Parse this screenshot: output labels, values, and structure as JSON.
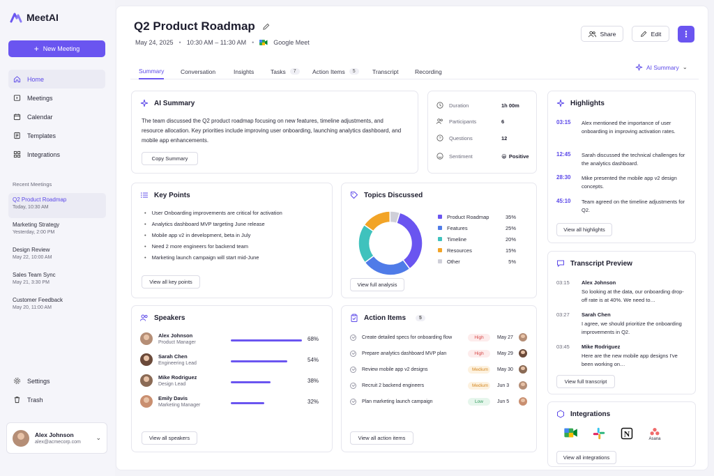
{
  "app": {
    "name": "MeetAI",
    "new_meeting": "New Meeting"
  },
  "nav": [
    {
      "label": "Home",
      "icon": "home-icon"
    },
    {
      "label": "Meetings",
      "icon": "meetings-icon"
    },
    {
      "label": "Calendar",
      "icon": "calendar-icon"
    },
    {
      "label": "Templates",
      "icon": "templates-icon"
    },
    {
      "label": "Integrations",
      "icon": "integrations-icon"
    }
  ],
  "recent": {
    "title": "Recent Meetings",
    "items": [
      {
        "name": "Q2 Product Roadmap",
        "date": "Today, 10:30 AM"
      },
      {
        "name": "Marketing Strategy",
        "date": "Yesterday, 2:00 PM"
      },
      {
        "name": "Design Review",
        "date": "May 22, 10:00 AM"
      },
      {
        "name": "Sales Team Sync",
        "date": "May 21, 3:30 PM"
      },
      {
        "name": "Customer Feedback",
        "date": "May 20, 11:00 AM"
      }
    ]
  },
  "bottom_nav": [
    {
      "label": "Settings"
    },
    {
      "label": "Trash"
    }
  ],
  "user": {
    "name": "Alex Johnson",
    "email": "alex@acmecorp.com"
  },
  "meeting": {
    "title": "Q2 Product Roadmap",
    "date": "May 24, 2025",
    "time": "10:30 AM – 11:30 AM",
    "platform": "Google Meet"
  },
  "header": {
    "share": "Share",
    "edit": "Edit"
  },
  "tabs": [
    {
      "label": "Summary"
    },
    {
      "label": "Conversation"
    },
    {
      "label": "Insights"
    },
    {
      "label": "Tasks",
      "count": "7"
    },
    {
      "label": "Action Items",
      "count": "5"
    },
    {
      "label": "Transcript"
    },
    {
      "label": "Recording"
    }
  ],
  "ai_dropdown": "AI Summary",
  "summary": {
    "title": "AI Summary",
    "text": "The team discussed the Q2 product roadmap focusing on new features, timeline adjustments, and resource allocation. Key priorities include improving user onboarding, launching analytics dashboard, and mobile app enhancements.",
    "copy": "Copy Summary"
  },
  "stats": [
    {
      "label": "Duration",
      "value": "1h 00m"
    },
    {
      "label": "Participants",
      "value": "6"
    },
    {
      "label": "Questions",
      "value": "12"
    },
    {
      "label": "Sentiment",
      "value": "Positive",
      "emoji": "😀"
    }
  ],
  "highlights": {
    "title": "Highlights",
    "items": [
      {
        "time": "03:15",
        "text": "Alex mentioned the importance of user onboarding in improving activation rates."
      },
      {
        "time": "12:45",
        "text": "Sarah discussed the technical challenges for the analytics dashboard."
      },
      {
        "time": "28:30",
        "text": "Mike presented the mobile app v2 design concepts."
      },
      {
        "time": "45:10",
        "text": "Team agreed on the timeline adjustments for Q2."
      }
    ],
    "view_all": "View all highlights"
  },
  "key_points": {
    "title": "Key Points",
    "items": [
      "User Onboarding improvements are critical for activation",
      "Analytics dashboard MVP targeting June release",
      "Mobile app v2 in development, beta in July",
      "Need 2 more engineers for backend team",
      "Marketing launch campaign will start mid-June"
    ],
    "view_all": "View all key points"
  },
  "topics": {
    "title": "Topics Discussed",
    "view_all": "View full analysis"
  },
  "chart_data": {
    "type": "pie",
    "title": "Topics Discussed",
    "categories": [
      "Product Roadmap",
      "Features",
      "Timeline",
      "Resources",
      "Other"
    ],
    "values": [
      35,
      25,
      20,
      15,
      5
    ],
    "labels": [
      "35%",
      "25%",
      "20%",
      "15%",
      "5%"
    ],
    "colors": [
      "#6a55f0",
      "#4f7be8",
      "#3fc2bd",
      "#f2a427",
      "#cfcfd8"
    ],
    "legend": "right"
  },
  "speakers": {
    "title": "Speakers",
    "items": [
      {
        "name": "Alex Johnson",
        "role": "Product Manager",
        "pct": "68%",
        "value": 0.68
      },
      {
        "name": "Sarah Chen",
        "role": "Engineering Lead",
        "pct": "54%",
        "value": 0.54
      },
      {
        "name": "Mike Rodriguez",
        "role": "Design Lead",
        "pct": "38%",
        "value": 0.38
      },
      {
        "name": "Emily Davis",
        "role": "Marketing Manager",
        "pct": "32%",
        "value": 0.32
      }
    ],
    "view_all": "View all speakers"
  },
  "action_items": {
    "title": "Action Items",
    "count": "5",
    "items": [
      {
        "task": "Create detailed specs for onboarding flow",
        "priority": "High",
        "date": "May 27"
      },
      {
        "task": "Prepare analytics dashboard MVP plan",
        "priority": "High",
        "date": "May 29"
      },
      {
        "task": "Review mobile app v2 designs",
        "priority": "Medium",
        "date": "May 30"
      },
      {
        "task": "Recruit 2 backend engineers",
        "priority": "Medium",
        "date": "Jun 3"
      },
      {
        "task": "Plan marketing launch campaign",
        "priority": "Low",
        "date": "Jun 5"
      }
    ],
    "view_all": "View all action items"
  },
  "transcript": {
    "title": "Transcript Preview",
    "items": [
      {
        "time": "03:15",
        "name": "Alex Johnson",
        "text": "So looking at the data, our onboarding drop-off rate is at 40%. We need to…"
      },
      {
        "time": "03:27",
        "name": "Sarah Chen",
        "text": "I agree, we should prioritize the onboarding improvements in Q2."
      },
      {
        "time": "03:45",
        "name": "Mike Rodriguez",
        "text": "Here are the new mobile app designs I've been working on…"
      }
    ],
    "view_all": "View full transcript"
  },
  "integrations": {
    "title": "Integrations",
    "items": [
      {
        "name": "Google Meet",
        "icon": "google-meet-icon"
      },
      {
        "name": "Slack",
        "icon": "slack-icon"
      },
      {
        "name": "Notion",
        "icon": "notion-icon"
      },
      {
        "name": "Asana",
        "label": "Asana",
        "icon": "asana-icon"
      }
    ],
    "view_all": "View all integrations"
  }
}
